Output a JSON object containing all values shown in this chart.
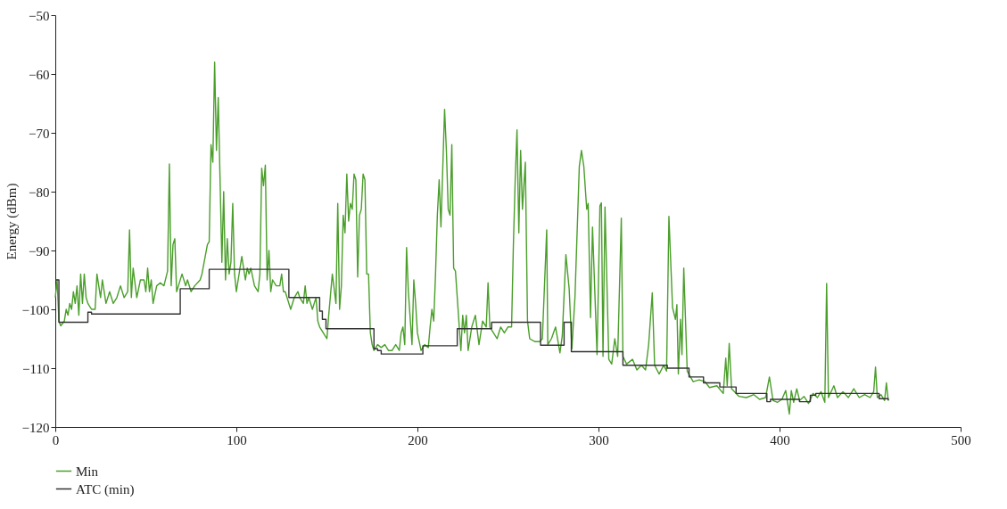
{
  "chart_data": {
    "type": "line",
    "ylabel": "Energy (dBm)",
    "xlim": [
      0,
      500
    ],
    "xticks": [
      0,
      100,
      200,
      300,
      400,
      500
    ],
    "ylim": [
      -120,
      -50
    ],
    "yticks": [
      -120,
      -110,
      -100,
      -90,
      -80,
      -70,
      -60,
      -50
    ],
    "grid": false,
    "legend": "bottom left",
    "series": [
      {
        "name": "Min",
        "color": "#4a9e2a",
        "type": "line",
        "x": [
          0,
          1,
          2,
          3,
          5,
          6,
          7,
          8,
          9,
          10,
          11,
          12,
          13,
          14,
          15,
          16,
          17,
          18,
          20,
          22,
          23,
          25,
          26,
          28,
          30,
          32,
          34,
          36,
          38,
          40,
          41,
          42,
          43,
          45,
          47,
          49,
          50,
          51,
          52,
          53,
          54,
          56,
          58,
          60,
          62,
          63,
          64,
          65,
          66,
          67,
          68,
          70,
          72,
          73,
          75,
          77,
          80,
          81,
          84,
          85,
          86,
          87,
          88,
          89,
          90,
          91,
          92,
          93,
          94,
          95,
          96,
          97,
          98,
          99,
          100,
          101,
          103,
          105,
          106,
          107,
          108,
          110,
          112,
          113,
          114,
          115,
          116,
          117,
          118,
          119,
          120,
          122,
          124,
          125,
          126,
          127,
          128,
          130,
          132,
          134,
          135,
          137,
          138,
          139,
          140,
          142,
          143,
          144,
          145,
          146,
          148,
          150,
          151,
          153,
          155,
          156,
          157,
          158,
          159,
          160,
          161,
          162,
          163,
          164,
          165,
          166,
          167,
          168,
          169,
          170,
          171,
          172,
          173,
          174,
          175,
          176,
          178,
          180,
          182,
          184,
          186,
          188,
          190,
          191,
          192,
          193,
          194,
          195,
          197,
          198,
          199,
          200,
          202,
          204,
          206,
          207,
          208,
          209,
          210,
          211,
          212,
          213,
          214,
          215,
          216,
          217,
          218,
          219,
          220,
          221,
          222,
          224,
          225,
          226,
          227,
          228,
          230,
          232,
          234,
          236,
          238,
          239,
          240,
          242,
          244,
          246,
          248,
          250,
          252,
          253,
          254,
          255,
          256,
          257,
          258,
          259.6,
          260.8,
          262,
          265,
          267.5,
          269,
          271.4,
          272,
          274,
          276.3,
          278.7,
          280,
          282,
          283.8,
          285.3,
          287,
          289.4,
          290.6,
          291.9,
          293.5,
          294.3,
          295.6,
          296.7,
          299.2,
          300.8,
          301.6,
          302.5,
          303.6,
          305.7,
          307.3,
          309,
          310.6,
          312.6,
          313.5,
          315.5,
          318.8,
          321.2,
          323.7,
          326,
          327.7,
          329.7,
          331,
          333.5,
          336,
          337.6,
          338.9,
          340.9,
          342.5,
          343.3,
          344.1,
          345.3,
          346.1,
          347.1,
          349,
          352.3,
          355.6,
          358.8,
          361.3,
          365.4,
          368.9,
          370.3,
          371.1,
          372.2,
          373.5,
          377.6,
          381.7,
          385.8,
          389,
          392.3,
          394.4,
          396.4,
          398.9,
          401.3,
          403.4,
          405.4,
          406.5,
          407.8,
          409.5,
          411.1,
          413.5,
          416,
          418.5,
          420.9,
          422.9,
          425,
          426,
          427,
          430,
          432,
          435,
          438,
          441,
          444,
          447,
          450,
          452,
          453,
          454,
          456,
          458,
          459,
          460
        ],
        "values": [
          -98,
          -95,
          -102,
          -102.8,
          -102,
          -100,
          -101,
          -99,
          -100,
          -97,
          -99,
          -96,
          -101,
          -94,
          -99,
          -94,
          -98,
          -99,
          -100,
          -100,
          -94,
          -98,
          -95,
          -99,
          -97,
          -99,
          -98,
          -96,
          -98,
          -97,
          -86.5,
          -98,
          -93,
          -98,
          -95,
          -95,
          -97,
          -93,
          -97,
          -95,
          -99,
          -96,
          -95.5,
          -96,
          -93.5,
          -75.3,
          -96,
          -89,
          -88,
          -97,
          -96,
          -94,
          -96,
          -95,
          -97,
          -96,
          -95,
          -94,
          -89,
          -88.5,
          -72,
          -75,
          -58,
          -73,
          -64,
          -78,
          -92,
          -80,
          -95,
          -88,
          -94,
          -92,
          -82,
          -94,
          -97,
          -95,
          -91,
          -95,
          -93,
          -94,
          -93,
          -96,
          -97,
          -94,
          -76,
          -79,
          -75.5,
          -95,
          -90,
          -97,
          -95,
          -96,
          -96,
          -94,
          -97,
          -97,
          -98,
          -100,
          -98,
          -97,
          -98,
          -99,
          -96,
          -99,
          -98,
          -100,
          -99,
          -98,
          -102,
          -103,
          -104,
          -105,
          -101,
          -94,
          -99,
          -82,
          -100,
          -96,
          -84,
          -87,
          -77,
          -85,
          -82,
          -83,
          -77,
          -78,
          -94.5,
          -84,
          -83,
          -77,
          -78,
          -94,
          -94,
          -104,
          -106,
          -107,
          -106,
          -106.5,
          -106,
          -107,
          -107,
          -106,
          -107,
          -104,
          -103,
          -106,
          -89.5,
          -97,
          -106,
          -95,
          -99,
          -104,
          -107,
          -106,
          -106.5,
          -103,
          -100,
          -102,
          -94,
          -84,
          -78,
          -86,
          -76,
          -66,
          -73,
          -83,
          -84,
          -72,
          -93,
          -93.5,
          -98,
          -107,
          -101,
          -104,
          -101,
          -107,
          -103,
          -101,
          -106,
          -102,
          -103,
          -95.5,
          -103,
          -104,
          -105,
          -103,
          -104,
          -103,
          -103,
          -89,
          -78,
          -69.5,
          -87,
          -73,
          -83,
          -75,
          -102,
          -105,
          -105.5,
          -105.5,
          -105,
          -86.5,
          -106,
          -105,
          -103,
          -107.4,
          -104.5,
          -90.7,
          -96.5,
          -106.7,
          -98,
          -75.7,
          -73,
          -75.7,
          -83,
          -82,
          -101.4,
          -86,
          -107.7,
          -82.4,
          -81.9,
          -108,
          -82.6,
          -108.5,
          -109.3,
          -105,
          -108,
          -84.5,
          -108,
          -109.3,
          -108.5,
          -110.3,
          -109.5,
          -110.3,
          -106,
          -97.2,
          -109.5,
          -111,
          -109.5,
          -110.5,
          -84.2,
          -99.7,
          -101.7,
          -99.2,
          -111,
          -101.7,
          -107.7,
          -93,
          -110.5,
          -112.3,
          -112,
          -112.3,
          -113.3,
          -113,
          -114.3,
          -108.3,
          -113,
          -105.8,
          -113.5,
          -114.8,
          -115,
          -114.5,
          -115.3,
          -115,
          -111.5,
          -115.5,
          -115.8,
          -115.3,
          -113.8,
          -117.8,
          -113.8,
          -115.8,
          -113.5,
          -115.5,
          -114.8,
          -116,
          -114.3,
          -115,
          -114,
          -115.8,
          -95.6,
          -115,
          -113,
          -115,
          -114,
          -115,
          -113.5,
          -115,
          -114.5,
          -115,
          -114,
          -109.8,
          -115,
          -114.5,
          -115.5,
          -112.5,
          -115.5
        ]
      },
      {
        "name": "ATC (min)",
        "color": "#333333",
        "type": "step",
        "x": [
          0,
          2,
          18,
          20,
          69,
          85,
          129,
          146,
          147.5,
          149.5,
          176,
          178,
          180,
          203,
          222,
          241,
          268,
          281,
          285,
          313.5,
          338,
          350,
          358,
          367,
          376,
          393,
          395,
          411,
          417,
          420,
          455,
          460
        ],
        "values": [
          -95,
          -102.2,
          -100.5,
          -100.8,
          -96.5,
          -93.2,
          -98,
          -100.3,
          -101.7,
          -103.3,
          -106.7,
          -107,
          -107.6,
          -106.2,
          -103.3,
          -102.2,
          -106.1,
          -102.2,
          -107.2,
          -109.5,
          -110,
          -111.5,
          -112.5,
          -113.2,
          -114.3,
          -115.7,
          -115.3,
          -115.7,
          -114.6,
          -114.3,
          -115.2,
          -115.5
        ]
      }
    ]
  }
}
